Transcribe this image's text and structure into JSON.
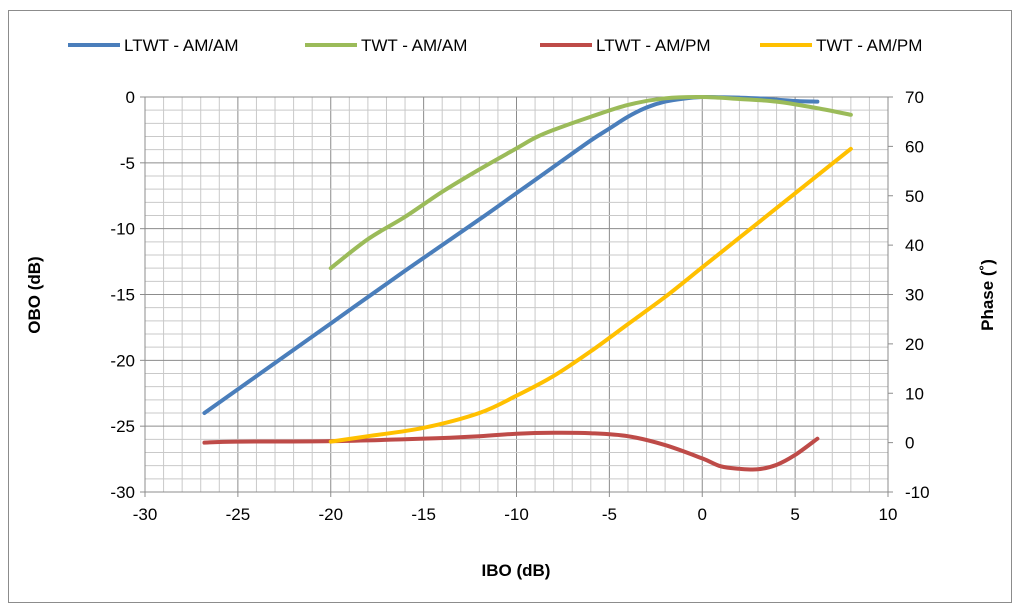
{
  "chart_data": {
    "type": "line",
    "title": "",
    "xlabel": "IBO (dB)",
    "ylabel": "OBO (dB)",
    "y2label": "Phase (˚)",
    "xlim": [
      -30,
      10
    ],
    "ylim": [
      -30,
      0
    ],
    "y2lim": [
      -10,
      70
    ],
    "x_ticks": [
      -30,
      -25,
      -20,
      -15,
      -10,
      -5,
      0,
      5,
      10
    ],
    "y_ticks": [
      0,
      -5,
      -10,
      -15,
      -20,
      -25,
      -30
    ],
    "y2_ticks": [
      70,
      60,
      50,
      40,
      30,
      20,
      10,
      0,
      -10
    ],
    "grid": true,
    "legend_position": "top",
    "series": [
      {
        "name": "LTWT - AM/AM",
        "axis": "left",
        "color": "#4a7ebb",
        "x": [
          -26.8,
          -24,
          -20,
          -16,
          -12,
          -10,
          -8,
          -6,
          -5,
          -4,
          -3,
          -2,
          -1,
          0,
          1,
          2,
          3,
          4,
          5,
          6.2
        ],
        "y": [
          -24,
          -21.2,
          -17.2,
          -13.2,
          -9.3,
          -7.3,
          -5.3,
          -3.3,
          -2.4,
          -1.5,
          -0.8,
          -0.35,
          -0.12,
          0,
          -0.02,
          -0.05,
          -0.1,
          -0.2,
          -0.3,
          -0.35
        ]
      },
      {
        "name": "TWT - AM/AM",
        "axis": "left",
        "color": "#9bbb59",
        "x": [
          -20,
          -18,
          -16,
          -14,
          -12,
          -10,
          -9,
          -8,
          -6,
          -4,
          -2,
          0,
          2,
          4,
          6,
          8
        ],
        "y": [
          -13,
          -10.8,
          -9.1,
          -7.2,
          -5.5,
          -3.9,
          -3.1,
          -2.5,
          -1.5,
          -0.6,
          -0.1,
          0,
          -0.15,
          -0.35,
          -0.8,
          -1.35
        ]
      },
      {
        "name": "LTWT - AM/PM",
        "axis": "right",
        "color": "#be4b48",
        "x": [
          -26.8,
          -25,
          -20,
          -15,
          -12,
          -10,
          -8,
          -6,
          -4,
          -2,
          0,
          1,
          2,
          3,
          4,
          5,
          6.2
        ],
        "y": [
          0,
          0.2,
          0.3,
          0.8,
          1.3,
          1.8,
          2,
          1.9,
          1.3,
          -0.5,
          -3.2,
          -4.8,
          -5.3,
          -5.4,
          -4.5,
          -2.5,
          0.8
        ]
      },
      {
        "name": "TWT - AM/PM",
        "axis": "right",
        "color": "#ffc000",
        "x": [
          -20,
          -18,
          -15,
          -12,
          -10,
          -8,
          -6,
          -4,
          -2,
          0,
          2,
          4,
          6,
          8
        ],
        "y": [
          0.2,
          1.3,
          3,
          6,
          9.5,
          13.5,
          18.5,
          24,
          29.5,
          35.5,
          41.5,
          47.5,
          53.5,
          59.5
        ]
      }
    ]
  }
}
